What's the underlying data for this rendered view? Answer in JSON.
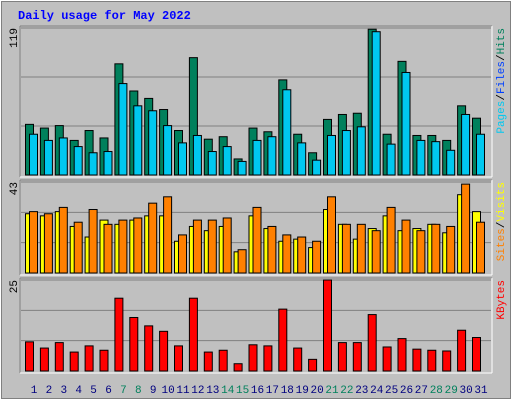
{
  "chart_data": [
    {
      "type": "bar",
      "title": "Daily usage for May 2022",
      "ylim": [
        0,
        119
      ],
      "yticks": [
        119
      ],
      "legend_separator": "/",
      "series": [
        {
          "name": "Hits",
          "color": "#00805c",
          "values": [
            41,
            38,
            40,
            28,
            36,
            30,
            90,
            68,
            62,
            53,
            36,
            95,
            29,
            31,
            13,
            38,
            35,
            77,
            33,
            18,
            45,
            49,
            50,
            118,
            33,
            92,
            32,
            32,
            28,
            56,
            46
          ]
        },
        {
          "name": "Files",
          "color": "#0040ff",
          "values": [
            null,
            null,
            null,
            null,
            null,
            null,
            null,
            null,
            null,
            null,
            null,
            null,
            null,
            null,
            null,
            null,
            null,
            null,
            null,
            null,
            null,
            null,
            null,
            null,
            null,
            null,
            null,
            null,
            null,
            null,
            null
          ]
        },
        {
          "name": "Pages",
          "color": "#00c8f0",
          "values": [
            33,
            28,
            30,
            23,
            18,
            19,
            74,
            56,
            52,
            40,
            26,
            32,
            19,
            23,
            11,
            28,
            31,
            69,
            26,
            12,
            32,
            36,
            39,
            116,
            25,
            83,
            28,
            27,
            20,
            49,
            33
          ]
        }
      ]
    },
    {
      "type": "bar",
      "ylim": [
        0,
        43
      ],
      "yticks": [
        43
      ],
      "legend_separator": "/",
      "series": [
        {
          "name": "Visits",
          "color": "#ffff00",
          "values": [
            28,
            27,
            29,
            22,
            17,
            25,
            23,
            25,
            27,
            27,
            15,
            22,
            20,
            22,
            10,
            27,
            21,
            15,
            16,
            12,
            30,
            23,
            16,
            21,
            27,
            20,
            21,
            23,
            19,
            37,
            29
          ]
        },
        {
          "name": "Sites",
          "color": "#ff8000",
          "values": [
            29,
            28,
            31,
            24,
            30,
            23,
            25,
            26,
            33,
            36,
            18,
            25,
            25,
            26,
            11,
            31,
            22,
            18,
            17,
            15,
            36,
            23,
            23,
            20,
            31,
            25,
            20,
            23,
            22,
            42,
            24
          ]
        }
      ]
    },
    {
      "type": "bar",
      "ylim": [
        0,
        25
      ],
      "yticks": [
        25
      ],
      "categories": [
        "1",
        "2",
        "3",
        "4",
        "5",
        "6",
        "7",
        "8",
        "9",
        "10",
        "11",
        "12",
        "13",
        "14",
        "15",
        "16",
        "17",
        "18",
        "19",
        "20",
        "21",
        "22",
        "23",
        "24",
        "25",
        "26",
        "27",
        "28",
        "29",
        "30",
        "31"
      ],
      "category_colors": [
        "#00007f",
        "#00007f",
        "#00007f",
        "#00007f",
        "#00007f",
        "#00007f",
        "#00805c",
        "#00805c",
        "#00007f",
        "#00007f",
        "#00007f",
        "#00007f",
        "#00007f",
        "#00805c",
        "#00805c",
        "#00007f",
        "#00007f",
        "#00007f",
        "#00007f",
        "#00007f",
        "#00805c",
        "#00805c",
        "#00007f",
        "#00007f",
        "#00007f",
        "#00007f",
        "#00007f",
        "#00805c",
        "#00805c",
        "#00007f",
        "#00007f"
      ],
      "series": [
        {
          "name": "KBytes",
          "color": "#ff0000",
          "values": [
            8,
            6.3,
            7.8,
            5.2,
            6.9,
            5.7,
            20,
            14.7,
            12.4,
            10.9,
            6.9,
            20,
            5.2,
            5.7,
            2,
            7.2,
            6.9,
            17,
            6.3,
            3.2,
            25,
            7.8,
            7.8,
            15.5,
            6.6,
            8.9,
            6,
            5.7,
            5.5,
            11.2,
            9.2
          ]
        }
      ]
    }
  ]
}
